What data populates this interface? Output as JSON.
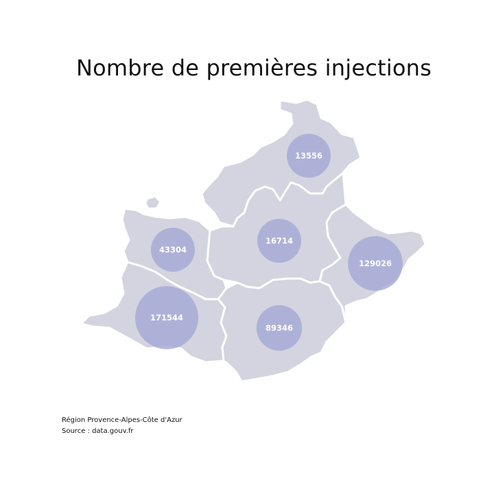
{
  "title": "Nombre de premières injections",
  "caption": {
    "region": "Région Provence-Alpes-Côte d'Azur",
    "source": "Source : data.gouv.fr"
  },
  "colors": {
    "land": "#d3d4df",
    "border": "#ffffff",
    "bubble": "#a5a7d4",
    "label": "#ffffff"
  },
  "departments": [
    {
      "code": "05",
      "value": 13556
    },
    {
      "code": "04",
      "value": 16714
    },
    {
      "code": "84",
      "value": 43304
    },
    {
      "code": "13",
      "value": 171544
    },
    {
      "code": "83",
      "value": 89346
    },
    {
      "code": "06",
      "value": 129026
    }
  ]
}
